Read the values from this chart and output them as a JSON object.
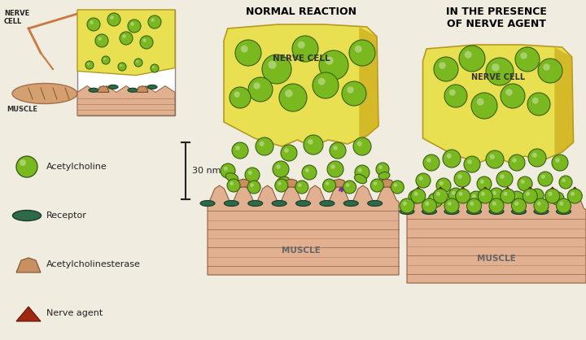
{
  "bg_color": "#f0ece0",
  "title_normal": "NORMAL REACTION",
  "title_nerve_agent": "IN THE PRESENCE\nOF NERVE AGENT",
  "nerve_cell_color": "#e8e050",
  "nerve_cell_edge": "#b89820",
  "nerve_cell_shade": "#c8a010",
  "acetylcholine_fill": "#7ab820",
  "acetylcholine_edge": "#3a6010",
  "receptor_color": "#2d6a4a",
  "receptor_edge": "#1a3a28",
  "acetylcholinesterase_color": "#c89060",
  "acetylcholinesterase_edge": "#7a5030",
  "nerve_agent_color": "#a02810",
  "nerve_agent_edge": "#601008",
  "muscle_top_color": "#e0b090",
  "muscle_body_color": "#d09878",
  "muscle_stripe_color": "#8a6040",
  "muscle_deep_color": "#c08868",
  "arrow_color": "#7030a0",
  "scalebar_color": "#222222",
  "nm_label": "30 nm",
  "nerve_cell_label": "NERVE CELL",
  "muscle_label": "MUSCLE",
  "title_fontsize": 9,
  "label_fontsize": 7,
  "legend_fontsize": 8
}
